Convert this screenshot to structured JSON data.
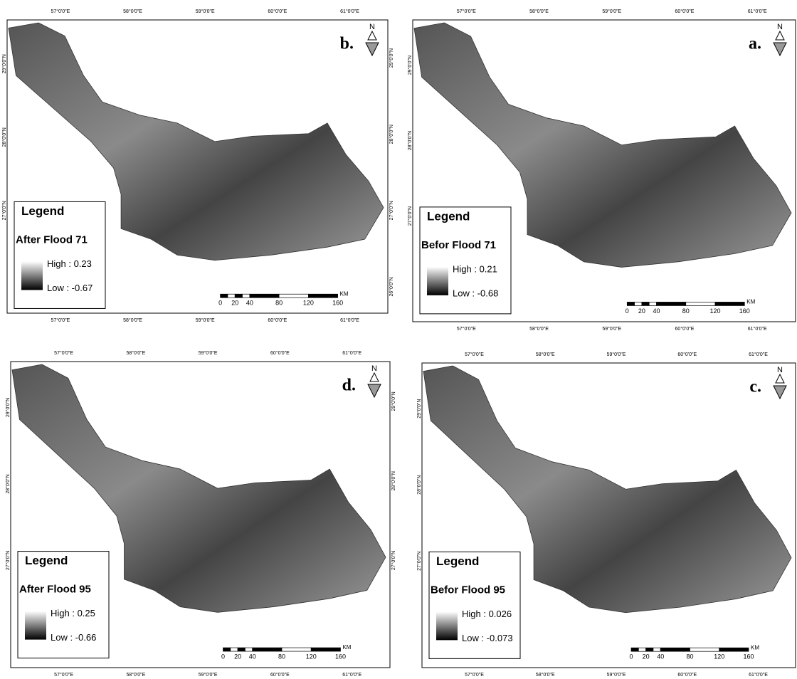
{
  "panels": [
    {
      "letter": "b.",
      "legend_title": "Legend",
      "layer": "After Flood  71",
      "high": "High : 0.23",
      "low": "Low : -0.67",
      "top_ticks": [
        "57°0'0\"E",
        "58°0'0\"E",
        "59°0'0\"E",
        "60°0'0\"E",
        "61°0'0\"E"
      ],
      "bottom_ticks": [
        "57°0'0\"E",
        "58°0'0\"E",
        "59°0'0\"E",
        "60°0'0\"E",
        "61°0'0\"E"
      ],
      "left_ticks": [
        "29°0'0\"N",
        "28°0'0\"N",
        "27°0'0\"N"
      ],
      "right_ticks": [
        "29°0'0\"N",
        "28°0'0\"N",
        "27°0'0\"N",
        "26°0'0\"N"
      ],
      "scale": [
        "0",
        "20",
        "40",
        "80",
        "120",
        "160"
      ],
      "scale_unit": "KM",
      "north": "N"
    },
    {
      "letter": "a.",
      "legend_title": "Legend",
      "layer": "Befor Flood  71",
      "high": "High : 0.21",
      "low": "Low : -0.68",
      "top_ticks": [
        "57°0'0\"E",
        "58°0'0\"E",
        "59°0'0\"E",
        "60°0'0\"E",
        "61°0'0\"E"
      ],
      "bottom_ticks": [
        "57°0'0\"E",
        "58°0'0\"E",
        "59°0'0\"E",
        "60°0'0\"E",
        "61°0'0\"E"
      ],
      "left_ticks": [
        "29°0'0\"N",
        "28°0'0\"N",
        "27°0'0\"N"
      ],
      "right_ticks": [],
      "scale": [
        "0",
        "20",
        "40",
        "80",
        "120",
        "160"
      ],
      "scale_unit": "KM",
      "north": "N"
    },
    {
      "letter": "d.",
      "legend_title": "Legend",
      "layer": "After Flood 95",
      "high": "High : 0.25",
      "low": "Low : -0.66",
      "top_ticks": [
        "57°0'0\"E",
        "58°0'0\"E",
        "59°0'0\"E",
        "60°0'0\"E",
        "61°0'0\"E"
      ],
      "bottom_ticks": [
        "57°0'0\"E",
        "58°0'0\"E",
        "59°0'0\"E",
        "60°0'0\"E",
        "61°0'0\"E"
      ],
      "left_ticks": [
        "29°0'0\"N",
        "28°0'0\"N",
        "27°0'0\"N"
      ],
      "right_ticks": [
        "29°0'0\"N",
        "28°0'0\"N",
        "27°0'0\"N"
      ],
      "scale": [
        "0",
        "20",
        "40",
        "80",
        "120",
        "160"
      ],
      "scale_unit": "KM",
      "north": "N"
    },
    {
      "letter": "c.",
      "legend_title": "Legend",
      "layer": "Befor Flood  95",
      "high": "High : 0.026",
      "low": "Low : -0.073",
      "top_ticks": [
        "57°0'0\"E",
        "58°0'0\"E",
        "59°0'0\"E",
        "60°0'0\"E",
        "61°0'0\"E"
      ],
      "bottom_ticks": [
        "57°0'0\"E",
        "58°0'0\"E",
        "59°0'0\"E",
        "60°0'0\"E",
        "61°0'0\"E"
      ],
      "left_ticks": [
        "29°0'0\"N",
        "28°0'0\"N",
        "27°0'0\"N"
      ],
      "right_ticks": [],
      "scale": [
        "0",
        "20",
        "40",
        "80",
        "120",
        "160"
      ],
      "scale_unit": "KM",
      "north": "N"
    }
  ]
}
